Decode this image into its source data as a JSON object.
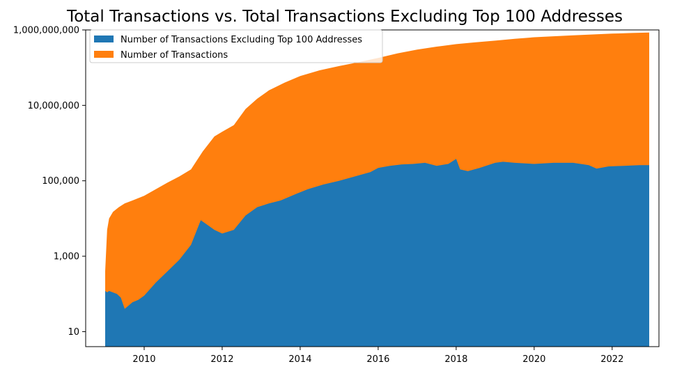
{
  "chart_data": {
    "type": "area",
    "title": "Total Transactions vs. Total Transactions Excluding Top 100 Addresses",
    "xlabel": "",
    "ylabel": "",
    "y_scale": "log",
    "ylim": [
      4,
      1000000000
    ],
    "xlim": [
      2008.5,
      2023.2
    ],
    "x_ticks": [
      2010,
      2012,
      2014,
      2016,
      2018,
      2020,
      2022
    ],
    "x_tick_labels": [
      "2010",
      "2012",
      "2014",
      "2016",
      "2018",
      "2020",
      "2022"
    ],
    "y_ticks": [
      10,
      1000,
      100000,
      10000000,
      1000000000
    ],
    "y_tick_labels": [
      "10",
      "1,000",
      "100,000",
      "10,000,000",
      "1,000,000,000"
    ],
    "grid": false,
    "legend_position": "top-left",
    "colors": {
      "excluding_top_100": "#1f77b4",
      "total": "#ff7f0e"
    },
    "series": [
      {
        "name": "Number of Transactions Excluding Top 100 Addresses",
        "color": "#1f77b4",
        "x": [
          2009.0,
          2009.05,
          2009.1,
          2009.3,
          2009.4,
          2009.5,
          2009.7,
          2009.85,
          2010.0,
          2010.3,
          2010.6,
          2010.9,
          2011.2,
          2011.45,
          2011.6,
          2011.8,
          2012.0,
          2012.3,
          2012.6,
          2012.9,
          2013.2,
          2013.5,
          2013.9,
          2014.2,
          2014.6,
          2015.0,
          2015.4,
          2015.8,
          2016.0,
          2016.3,
          2016.6,
          2016.9,
          2017.2,
          2017.5,
          2017.8,
          2018.0,
          2018.1,
          2018.3,
          2018.6,
          2019.0,
          2019.2,
          2019.5,
          2020.0,
          2020.5,
          2021.0,
          2021.4,
          2021.6,
          2021.9,
          2022.3,
          2022.7,
          2022.95
        ],
        "values": [
          120,
          110,
          120,
          100,
          80,
          40,
          60,
          70,
          90,
          200,
          400,
          800,
          2000,
          9000,
          7000,
          5000,
          4000,
          5000,
          12000,
          20000,
          25000,
          30000,
          45000,
          60000,
          80000,
          100000,
          130000,
          170000,
          220000,
          250000,
          270000,
          280000,
          300000,
          250000,
          280000,
          380000,
          200000,
          180000,
          220000,
          300000,
          320000,
          300000,
          280000,
          300000,
          300000,
          260000,
          210000,
          240000,
          250000,
          260000,
          260000
        ]
      },
      {
        "name": "Number of Transactions",
        "color": "#ff7f0e",
        "x": [
          2009.0,
          2009.05,
          2009.1,
          2009.2,
          2009.35,
          2009.5,
          2009.7,
          2010.0,
          2010.3,
          2010.6,
          2010.9,
          2011.2,
          2011.5,
          2011.8,
          2012.0,
          2012.3,
          2012.6,
          2012.9,
          2013.2,
          2013.6,
          2014.0,
          2014.5,
          2015.0,
          2015.5,
          2016.0,
          2016.5,
          2017.0,
          2017.5,
          2018.0,
          2018.5,
          2019.0,
          2019.5,
          2020.0,
          2020.5,
          2021.0,
          2021.5,
          2022.0,
          2022.5,
          2022.95
        ],
        "values": [
          400,
          5000,
          10000,
          15000,
          20000,
          25000,
          30000,
          40000,
          60000,
          90000,
          130000,
          200000,
          600000,
          1500000,
          2000000,
          3000000,
          8000000,
          15000000,
          25000000,
          40000000,
          60000000,
          85000000,
          110000000,
          140000000,
          180000000,
          240000000,
          300000000,
          360000000,
          420000000,
          470000000,
          520000000,
          580000000,
          640000000,
          680000000,
          720000000,
          760000000,
          800000000,
          830000000,
          850000000
        ]
      }
    ]
  }
}
